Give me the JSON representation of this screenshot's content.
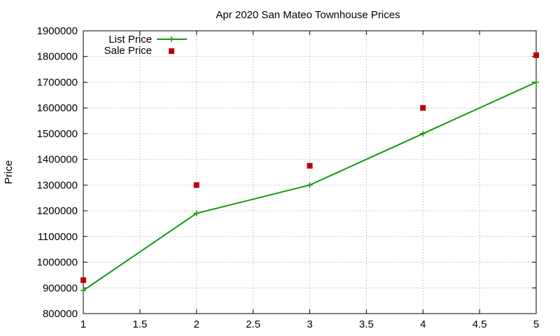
{
  "chart_data": {
    "type": "line",
    "title": "Apr 2020 San Mateo Townhouse Prices",
    "xlabel": "",
    "ylabel": "Price",
    "xlim": [
      1,
      5
    ],
    "ylim": [
      800000,
      1900000
    ],
    "xticks": [
      "1",
      "1.5",
      "2",
      "2.5",
      "3",
      "3.5",
      "4",
      "4.5",
      "5"
    ],
    "yticks": [
      "800000",
      "900000",
      "1000000",
      "1100000",
      "1200000",
      "1300000",
      "1400000",
      "1500000",
      "1600000",
      "1700000",
      "1800000",
      "1900000"
    ],
    "grid": true,
    "legend_position": "top-left",
    "series": [
      {
        "name": "List Price",
        "style": "lines+points",
        "marker": "plus",
        "color": "#109910",
        "x": [
          1,
          2,
          3,
          4,
          5
        ],
        "y": [
          890000,
          1190000,
          1300000,
          1500000,
          1700000
        ]
      },
      {
        "name": "Sale Price",
        "style": "points",
        "marker": "square",
        "color": "#c00000",
        "x": [
          1,
          2,
          3,
          4,
          5
        ],
        "y": [
          930000,
          1300000,
          1375000,
          1600000,
          1805000
        ]
      }
    ]
  }
}
